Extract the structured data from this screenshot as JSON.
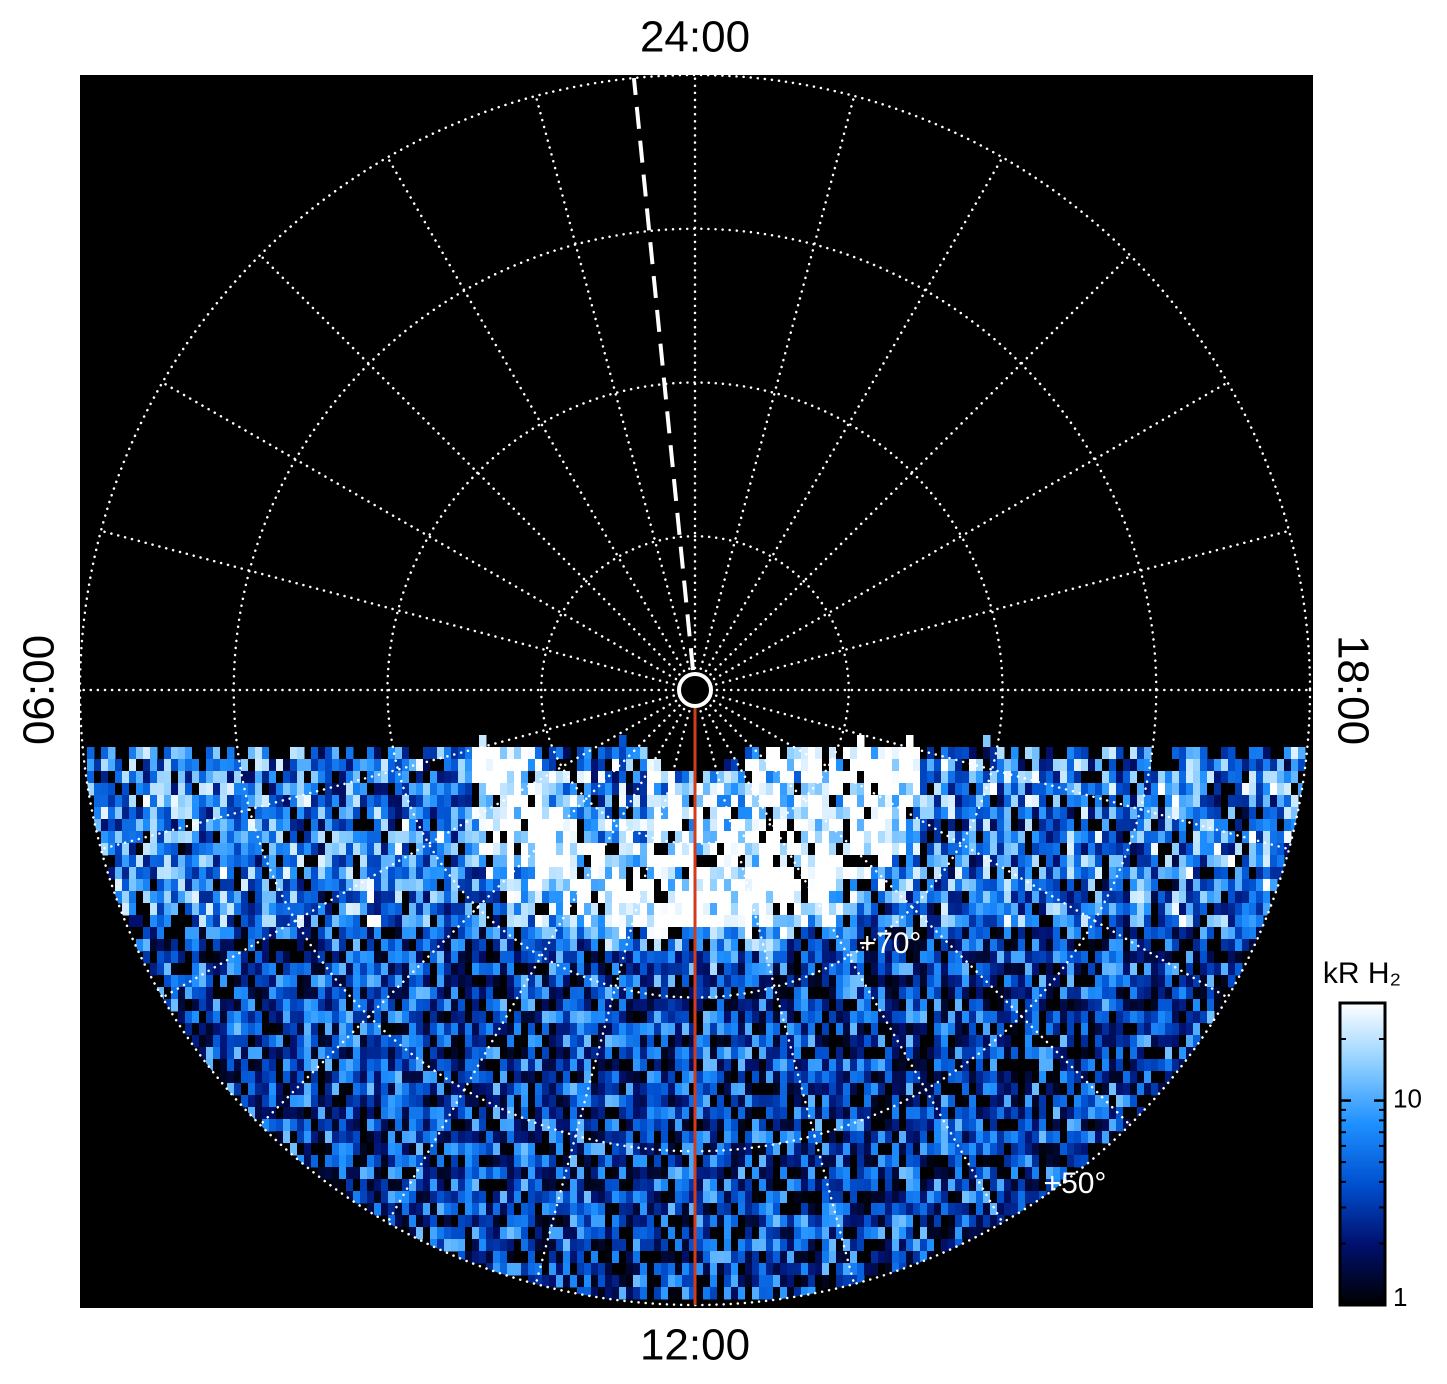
{
  "chart_data": {
    "type": "polar",
    "local_time_labels": {
      "top": "24:00",
      "left": "06:00",
      "right": "18:00",
      "bottom": "12:00"
    },
    "latlim": [
      50,
      90
    ],
    "lat_circles": [
      80,
      70,
      60,
      50
    ],
    "lat_labels": [
      {
        "value": 70,
        "label": "+70°"
      },
      {
        "value": 50,
        "label": "+50°"
      }
    ],
    "meridian_step_h": 1,
    "reference_meridian_h": 0.38,
    "highlight_meridian_h": 12,
    "highlight_color": "#d23c1e",
    "colorbar": {
      "label": "kR H₂",
      "scale": "log",
      "clim": [
        1,
        30
      ],
      "ticks": [
        1,
        10
      ],
      "colors": [
        "#000000",
        "#00106e",
        "#0050d0",
        "#1e90ff",
        "#90d0ff",
        "#ffffff"
      ]
    }
  }
}
